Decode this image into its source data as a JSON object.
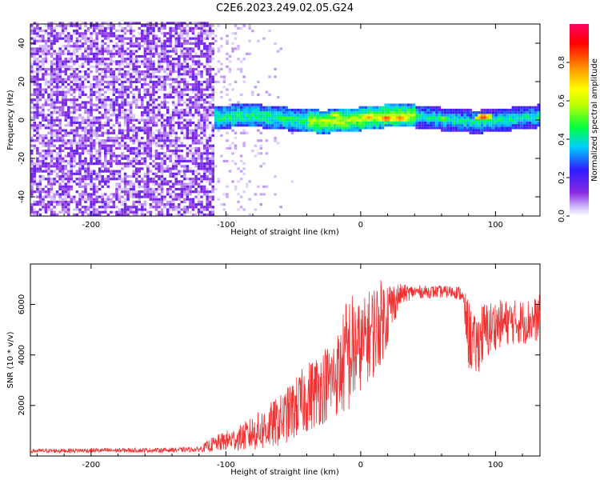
{
  "title": "C2E6.2023.249.02.05.G24",
  "chart_data": [
    {
      "type": "heatmap",
      "xlabel": "Height of straight line (km)",
      "ylabel": "Frequency (Hz)",
      "xlim": [
        -245,
        133
      ],
      "ylim": [
        -50,
        50
      ],
      "xticks": [
        -200,
        -100,
        0,
        100
      ],
      "yticks": [
        -40,
        -20,
        0,
        20,
        40
      ],
      "xtick_labels": [
        "-200",
        "-100",
        "0",
        "100"
      ],
      "ytick_labels": [
        "-40",
        "-20",
        "0",
        "20",
        "40"
      ],
      "noise_region_x": [
        -245,
        -110
      ],
      "signal_band_center_hz": 0,
      "signal_band_halfwidth_hz": 4,
      "hotspots": [
        {
          "x": 18,
          "y": 0,
          "value": 0.95
        },
        {
          "x": 28,
          "y": 0,
          "value": 0.9
        },
        {
          "x": 90,
          "y": 1,
          "value": 0.95
        },
        {
          "x": 60,
          "y": 0,
          "value": 0.6
        },
        {
          "x": 5,
          "y": 1,
          "value": 0.85
        },
        {
          "x": -20,
          "y": 2,
          "value": 0.7
        }
      ],
      "colorbar": {
        "label": "Normalized spectral amplitude",
        "range": [
          0,
          1
        ],
        "ticks": [
          0.0,
          0.2,
          0.4,
          0.6,
          0.8
        ],
        "tick_labels": [
          "0.0",
          "0.2",
          "0.4",
          "0.6",
          "0.8"
        ],
        "colormap": "rainbow"
      }
    },
    {
      "type": "line",
      "xlabel": "Height of straight line (km)",
      "ylabel": "SNR (10 * v/v)",
      "xlim": [
        -245,
        133
      ],
      "ylim": [
        0,
        7600
      ],
      "xticks": [
        -200,
        -100,
        0,
        100
      ],
      "yticks": [
        2000,
        4000,
        6000
      ],
      "xtick_labels": [
        "-200",
        "-100",
        "0",
        "100"
      ],
      "ytick_labels": [
        "2000",
        "4000",
        "6000"
      ],
      "color": "#ee3333",
      "series": [
        {
          "x": [
            -245,
            -200,
            -150,
            -120,
            -110,
            -100,
            -90,
            -80,
            -70,
            -60,
            -50,
            -40,
            -30,
            -20,
            -15,
            -10,
            -5,
            0,
            5,
            10,
            15,
            20,
            25,
            30,
            40,
            50,
            60,
            70,
            75,
            80,
            85,
            90,
            100,
            110,
            120,
            130,
            133
          ],
          "values": [
            200,
            220,
            230,
            260,
            450,
            600,
            700,
            900,
            1100,
            1400,
            1800,
            2300,
            2700,
            3100,
            3400,
            4000,
            4200,
            4300,
            4700,
            5000,
            5300,
            5700,
            6100,
            6400,
            6500,
            6500,
            6500,
            6500,
            6400,
            4800,
            4300,
            4800,
            5200,
            5300,
            5300,
            5400,
            5500
          ],
          "noise_amplitude": [
            80,
            90,
            90,
            100,
            300,
            400,
            500,
            700,
            900,
            1000,
            1200,
            1400,
            1500,
            1600,
            1800,
            2500,
            2300,
            1700,
            1800,
            1900,
            1700,
            1400,
            800,
            400,
            250,
            250,
            250,
            250,
            300,
            1400,
            1200,
            1300,
            1000,
            900,
            900,
            900,
            900
          ]
        }
      ]
    }
  ]
}
